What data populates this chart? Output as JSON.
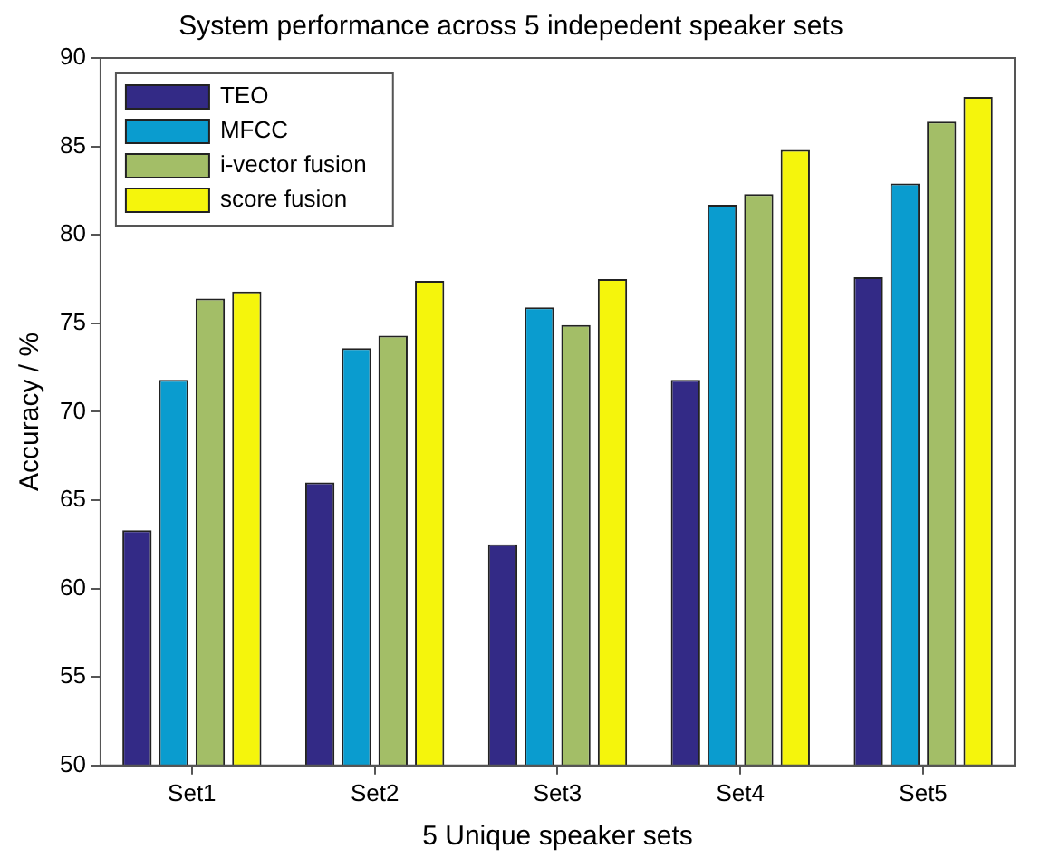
{
  "chart_data": {
    "type": "bar",
    "title": "System performance across 5 indepedent speaker sets",
    "xlabel": "5 Unique speaker sets",
    "ylabel": "Accuracy / %",
    "categories": [
      "Set1",
      "Set2",
      "Set3",
      "Set4",
      "Set5"
    ],
    "series": [
      {
        "name": "TEO",
        "color": "#332a86",
        "values": [
          63.3,
          66.0,
          62.5,
          71.8,
          77.6
        ]
      },
      {
        "name": "MFCC",
        "color": "#0a9ccf",
        "values": [
          71.8,
          73.6,
          75.9,
          81.7,
          82.9
        ]
      },
      {
        "name": "i-vector fusion",
        "color": "#a3be67",
        "values": [
          76.4,
          74.3,
          74.9,
          82.3,
          86.4
        ]
      },
      {
        "name": "score fusion",
        "color": "#f5f50c",
        "values": [
          76.8,
          77.4,
          77.5,
          84.8,
          87.8
        ]
      }
    ],
    "ylim": [
      50,
      90
    ],
    "yticks": [
      50,
      55,
      60,
      65,
      70,
      75,
      80,
      85,
      90
    ],
    "grid": false,
    "legend": "top left"
  }
}
